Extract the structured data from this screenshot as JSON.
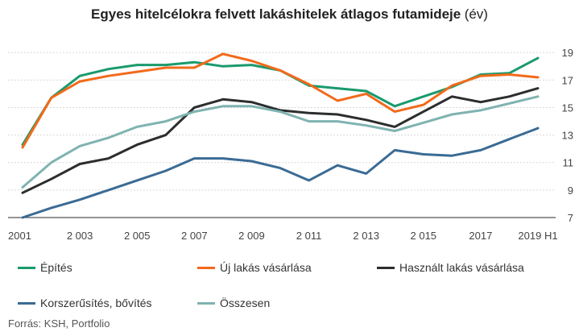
{
  "header": {
    "title": "Egyes hitelcélokra felvett lakáshitelek átlagos futamideje",
    "unit": "(év)"
  },
  "footer": {
    "source": "Forrás: KSH, Portfolio"
  },
  "chart_data": {
    "type": "line",
    "title": "Egyes hitelcélokra felvett lakáshitelek átlagos futamideje (év)",
    "x": [
      "2001",
      "2002",
      "2003",
      "2004",
      "2005",
      "2006",
      "2007",
      "2008",
      "2009",
      "2010",
      "2011",
      "2012",
      "2013",
      "2014",
      "2015",
      "2016",
      "2017",
      "2018",
      "2019 H1"
    ],
    "x_tick_labels": [
      "2001",
      "2 003",
      "2 005",
      "2 007",
      "2 009",
      "2 011",
      "2 013",
      "2 015",
      "2017",
      "2019 H1"
    ],
    "x_tick_indices": [
      0,
      2,
      4,
      6,
      8,
      10,
      12,
      14,
      16,
      18
    ],
    "y_ticks": [
      7,
      9,
      11,
      13,
      15,
      17,
      19
    ],
    "ylim": [
      7,
      19.6
    ],
    "y_axis_position": "right",
    "grid": true,
    "legend_position": "bottom",
    "series": [
      {
        "name": "Építés",
        "color": "#1a9a6c",
        "values": [
          12.3,
          15.7,
          17.3,
          17.8,
          18.1,
          18.1,
          18.3,
          18.0,
          18.1,
          17.7,
          16.6,
          16.4,
          16.2,
          15.1,
          15.8,
          16.5,
          17.4,
          17.5,
          18.6
        ]
      },
      {
        "name": "Új lakás vásárlása",
        "color": "#f26a1b",
        "values": [
          12.1,
          15.7,
          16.9,
          17.3,
          17.6,
          17.9,
          17.9,
          18.9,
          18.4,
          17.7,
          16.7,
          15.5,
          16.0,
          14.7,
          15.2,
          16.6,
          17.3,
          17.4,
          17.2
        ]
      },
      {
        "name": "Használt lakás vásárlása",
        "color": "#2b2d2f",
        "values": [
          8.8,
          9.8,
          10.9,
          11.3,
          12.3,
          13.0,
          15.0,
          15.6,
          15.4,
          14.8,
          14.6,
          14.5,
          14.1,
          13.6,
          14.7,
          15.8,
          15.4,
          15.8,
          16.4
        ]
      },
      {
        "name": "Korszerűsítés, bővítés",
        "color": "#3a6b94",
        "values": [
          7.0,
          7.7,
          8.3,
          9.0,
          9.7,
          10.4,
          11.3,
          11.3,
          11.1,
          10.6,
          9.7,
          10.8,
          10.2,
          11.9,
          11.6,
          11.5,
          11.9,
          12.7,
          13.5
        ]
      },
      {
        "name": "Összesen",
        "color": "#7fb3b0",
        "values": [
          9.2,
          11.0,
          12.2,
          12.8,
          13.6,
          14.0,
          14.7,
          15.1,
          15.1,
          14.7,
          14.0,
          14.0,
          13.7,
          13.3,
          13.9,
          14.5,
          14.8,
          15.3,
          15.8
        ]
      }
    ]
  }
}
